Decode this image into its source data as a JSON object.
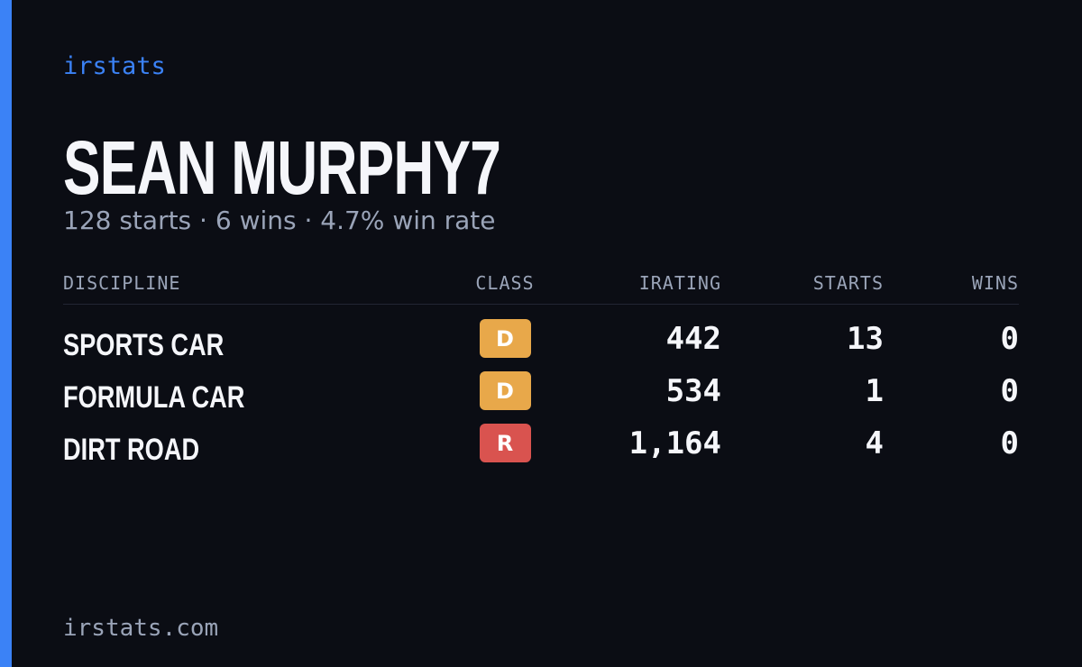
{
  "brand": "irstats",
  "profile": {
    "name": "SEAN MURPHY7",
    "summary": "128 starts · 6 wins · 4.7% win rate"
  },
  "table": {
    "headers": [
      "DISCIPLINE",
      "CLASS",
      "IRATING",
      "STARTS",
      "WINS"
    ],
    "rows": [
      {
        "discipline": "SPORTS CAR",
        "class": "D",
        "class_color": "#e8a84a",
        "irating": "442",
        "starts": "13",
        "wins": "0"
      },
      {
        "discipline": "FORMULA CAR",
        "class": "D",
        "class_color": "#e8a84a",
        "irating": "534",
        "starts": "1",
        "wins": "0"
      },
      {
        "discipline": "DIRT ROAD",
        "class": "R",
        "class_color": "#d9534f",
        "irating": "1,164",
        "starts": "4",
        "wins": "0"
      }
    ]
  },
  "footer": "irstats.com"
}
